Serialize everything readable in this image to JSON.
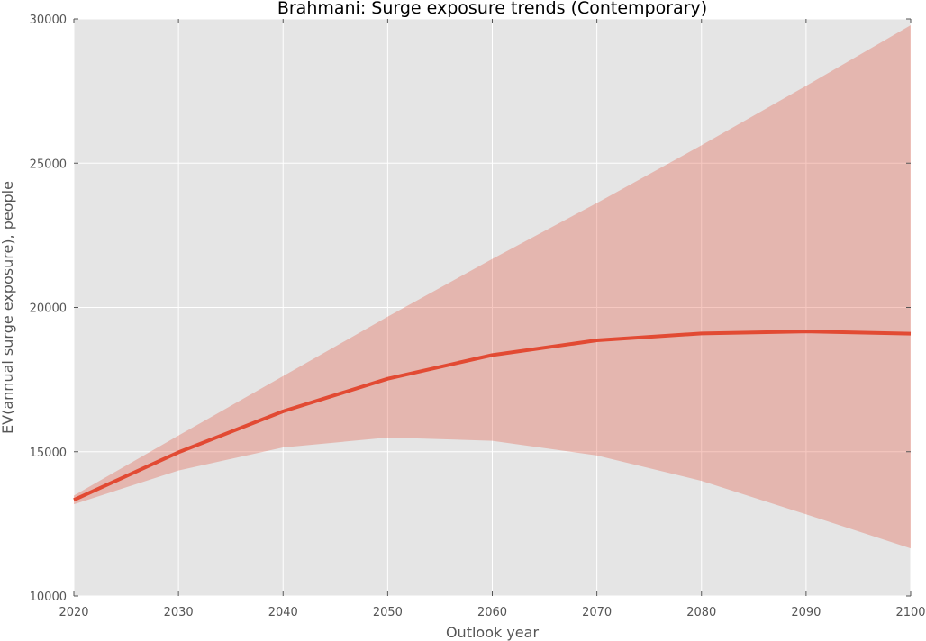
{
  "chart_data": {
    "type": "line",
    "title": "Brahmani: Surge exposure trends (Contemporary)",
    "xlabel": "Outlook year",
    "ylabel": "EV(annual surge exposure), people",
    "xlim": [
      2020,
      2100
    ],
    "ylim": [
      10000,
      30000
    ],
    "xticks": [
      2020,
      2030,
      2040,
      2050,
      2060,
      2070,
      2080,
      2090,
      2100
    ],
    "yticks": [
      10000,
      15000,
      20000,
      25000,
      30000
    ],
    "grid": true,
    "x": [
      2020,
      2030,
      2040,
      2050,
      2060,
      2070,
      2080,
      2090,
      2100
    ],
    "series": [
      {
        "values": [
          13330,
          14980,
          16400,
          17530,
          18350,
          18860,
          19100,
          19170,
          19090
        ],
        "band_lower": [
          13180,
          14350,
          15150,
          15490,
          15380,
          14870,
          13990,
          12830,
          11650
        ],
        "band_upper": [
          13480,
          15560,
          17620,
          19680,
          21680,
          23620,
          25620,
          27680,
          29780
        ]
      }
    ],
    "colors": {
      "plot_background": "#e5e5e5",
      "grid": "#ffffff",
      "line": "#e24a33",
      "band": "#e24a33"
    }
  }
}
